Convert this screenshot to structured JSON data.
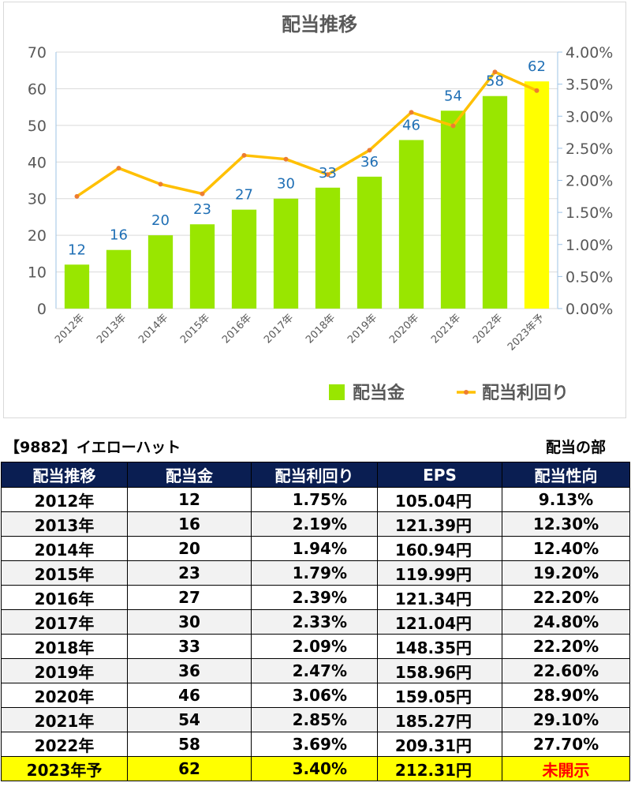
{
  "chart_data": {
    "type": "bar",
    "title": "配当推移",
    "categories": [
      "2012年",
      "2013年",
      "2014年",
      "2015年",
      "2016年",
      "2017年",
      "2018年",
      "2019年",
      "2020年",
      "2021年",
      "2022年",
      "2023年予"
    ],
    "series": [
      {
        "name": "配当金",
        "type": "bar",
        "axis": "left",
        "values": [
          12,
          16,
          20,
          23,
          27,
          30,
          33,
          36,
          46,
          54,
          58,
          62
        ],
        "color": "#99e600",
        "highlight_last_color": "#ffff00"
      },
      {
        "name": "配当利回り",
        "type": "line",
        "axis": "right",
        "values": [
          1.75,
          2.19,
          1.94,
          1.79,
          2.39,
          2.33,
          2.09,
          2.47,
          3.06,
          2.85,
          3.69,
          3.4
        ],
        "color": "#ffc000",
        "marker_color": "#ed7d31"
      }
    ],
    "ylim": [
      0,
      70
    ],
    "y2lim": [
      0,
      4
    ],
    "y_ticks": [
      "0",
      "10",
      "20",
      "30",
      "40",
      "50",
      "60",
      "70"
    ],
    "y2_ticks": [
      "0.00%",
      "0.50%",
      "1.00%",
      "1.50%",
      "2.00%",
      "2.50%",
      "3.00%",
      "3.50%",
      "4.00%"
    ],
    "legend_position": "bottom-right",
    "grid": true
  },
  "header": {
    "code_label": "【9882】イエローハット",
    "section_label": "配当の部"
  },
  "table": {
    "columns": [
      "配当推移",
      "配当金",
      "配当利回り",
      "EPS",
      "配当性向"
    ],
    "rows": [
      [
        "2012年",
        "12",
        "1.75%",
        "105.04円",
        "9.13%"
      ],
      [
        "2013年",
        "16",
        "2.19%",
        "121.39円",
        "12.30%"
      ],
      [
        "2014年",
        "20",
        "1.94%",
        "160.94円",
        "12.40%"
      ],
      [
        "2015年",
        "23",
        "1.79%",
        "119.99円",
        "19.20%"
      ],
      [
        "2016年",
        "27",
        "2.39%",
        "121.34円",
        "22.20%"
      ],
      [
        "2017年",
        "30",
        "2.33%",
        "121.04円",
        "24.80%"
      ],
      [
        "2018年",
        "33",
        "2.09%",
        "148.35円",
        "22.20%"
      ],
      [
        "2019年",
        "36",
        "2.47%",
        "158.96円",
        "22.60%"
      ],
      [
        "2020年",
        "46",
        "3.06%",
        "159.05円",
        "28.90%"
      ],
      [
        "2021年",
        "54",
        "2.85%",
        "185.27円",
        "29.10%"
      ],
      [
        "2022年",
        "58",
        "3.69%",
        "209.31円",
        "27.70%"
      ],
      [
        "2023年予",
        "62",
        "3.40%",
        "212.31円",
        "未開示"
      ]
    ]
  }
}
